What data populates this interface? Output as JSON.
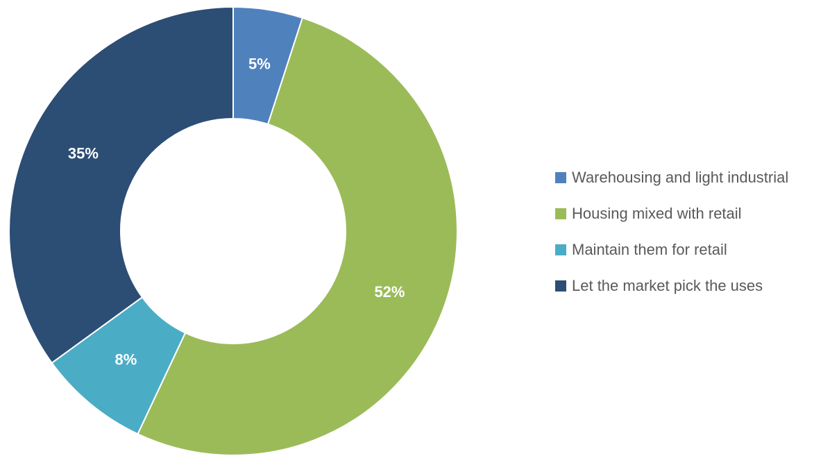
{
  "chart_data": {
    "type": "donut",
    "categories": [
      "Warehousing and light industrial",
      "Housing mixed with retail",
      "Maintain them for retail",
      "Let the market pick the uses"
    ],
    "values": [
      5,
      52,
      8,
      35
    ],
    "value_labels": [
      "5%",
      "52%",
      "8%",
      "35%"
    ],
    "colors": [
      "#4f81bd",
      "#9bbb59",
      "#4bacc6",
      "#2c4d74"
    ],
    "legend": "right"
  }
}
